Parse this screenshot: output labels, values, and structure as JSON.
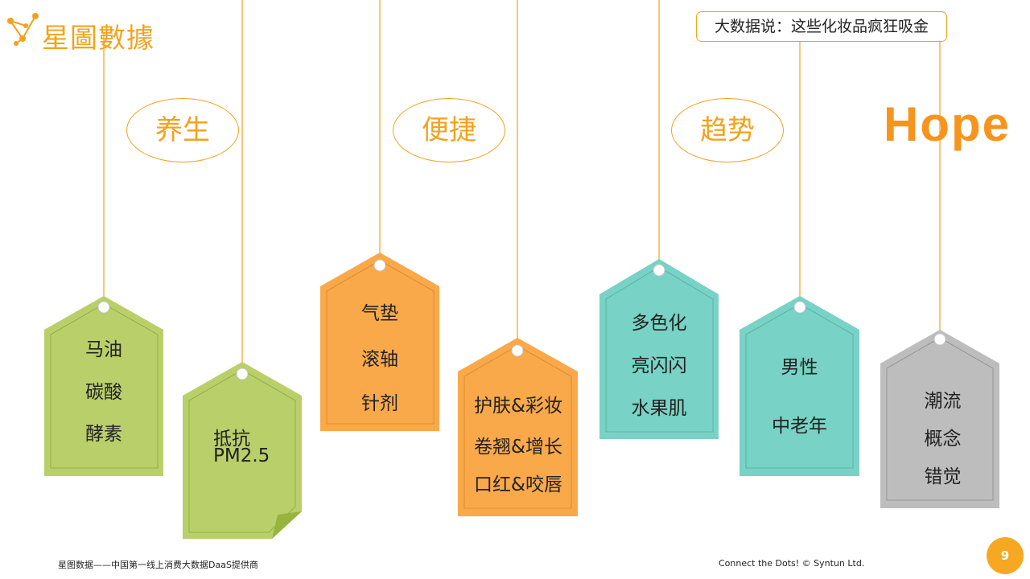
{
  "brand": {
    "name": "星圖數據"
  },
  "headline": "大数据说：这些化妆品疯狂吸金",
  "categories": {
    "health": "养生",
    "convenience": "便捷",
    "trend": "趋势",
    "hope": "Hope"
  },
  "tags": {
    "t1": {
      "line1": "马油",
      "line2": "碳酸",
      "line3": "酵素"
    },
    "t2": {
      "line1": "抵抗",
      "line2": "PM2.5"
    },
    "t3": {
      "line1": "气垫",
      "line2": "滚轴",
      "line3": "针剂"
    },
    "t4": {
      "line1": "护肤&彩妆",
      "line2": "卷翘&增长",
      "line3": "口红&咬唇"
    },
    "t5": {
      "line1": "多色化",
      "line2": "亮闪闪",
      "line3": "水果肌"
    },
    "t6": {
      "line1": "男性",
      "line2": "中老年"
    },
    "t7": {
      "line1": "潮流",
      "line2": "概念",
      "line3": "错觉"
    }
  },
  "footer": {
    "left": "星图数据——中国第一线上消费大数据DaaS提供商",
    "right": "Connect the Dots!  © Syntun Ltd.",
    "page": "9"
  },
  "colors": {
    "green": "#b9cf6a",
    "orange": "#f9a94a",
    "teal": "#78d2c5",
    "gray": "#bdbdbd",
    "accent": "#f3a21d"
  }
}
